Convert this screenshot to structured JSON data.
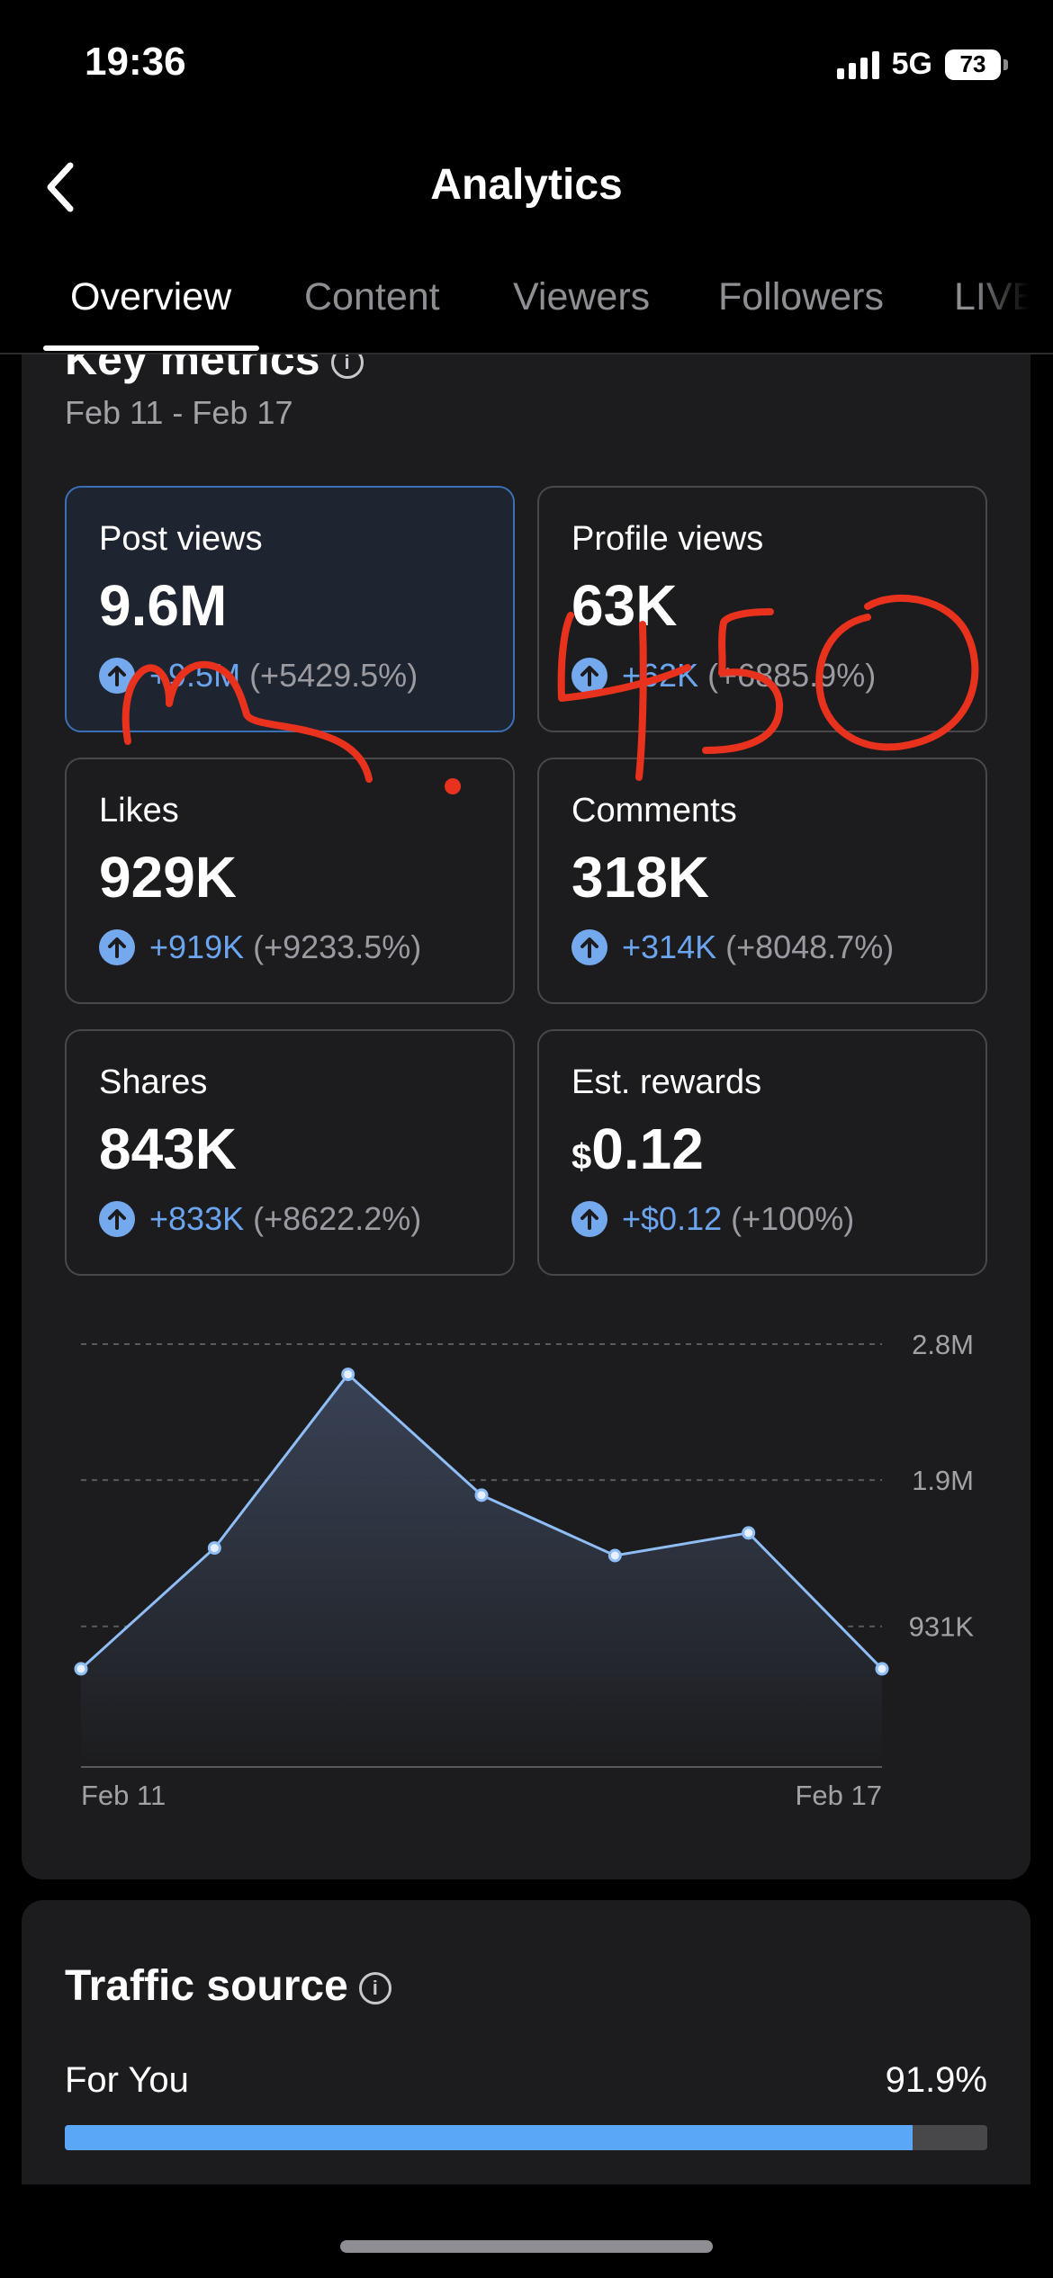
{
  "status_bar": {
    "time": "19:36",
    "network": "5G",
    "battery": "73"
  },
  "nav": {
    "title": "Analytics"
  },
  "tabs": [
    "Overview",
    "Content",
    "Viewers",
    "Followers",
    "LIVE"
  ],
  "key_metrics": {
    "title": "Key metrics",
    "date_range": "Feb 11 - Feb 17",
    "tiles": [
      {
        "label": "Post views",
        "value": "9.6M",
        "delta": "+9.5M",
        "pct": "(+5429.5%)"
      },
      {
        "label": "Profile views",
        "value": "63K",
        "delta": "+62K",
        "pct": "(+6885.9%)"
      },
      {
        "label": "Likes",
        "value": "929K",
        "delta": "+919K",
        "pct": "(+9233.5%)"
      },
      {
        "label": "Comments",
        "value": "318K",
        "delta": "+314K",
        "pct": "(+8048.7%)"
      },
      {
        "label": "Shares",
        "value": "843K",
        "delta": "+833K",
        "pct": "(+8622.2%)"
      },
      {
        "label": "Est. rewards",
        "currency": "$",
        "value": "0.12",
        "delta": "+$0.12",
        "pct": "(+100%)"
      }
    ]
  },
  "chart_data": {
    "type": "area",
    "x": [
      "Feb 11",
      "Feb 12",
      "Feb 13",
      "Feb 14",
      "Feb 15",
      "Feb 16",
      "Feb 17"
    ],
    "values": [
      650000,
      1450000,
      2600000,
      1800000,
      1400000,
      1550000,
      650000
    ],
    "y_tick_labels": [
      "2.8M",
      "1.9M",
      "931K"
    ],
    "y_ticks": [
      2800000,
      1900000,
      931000
    ],
    "x_tick_labels": [
      "Feb 11",
      "Feb 17"
    ],
    "ylim": [
      0,
      2800000
    ],
    "grid": true,
    "colors": {
      "line": "#8fbdf5",
      "fill_top": "#3a4458"
    }
  },
  "traffic_source": {
    "title": "Traffic source",
    "items": [
      {
        "name": "For You",
        "pct": "91.9%",
        "fraction": 0.919
      }
    ],
    "bar_color": "#5aa7f7"
  },
  "annotation": {
    "handwritten_text": "450"
  }
}
